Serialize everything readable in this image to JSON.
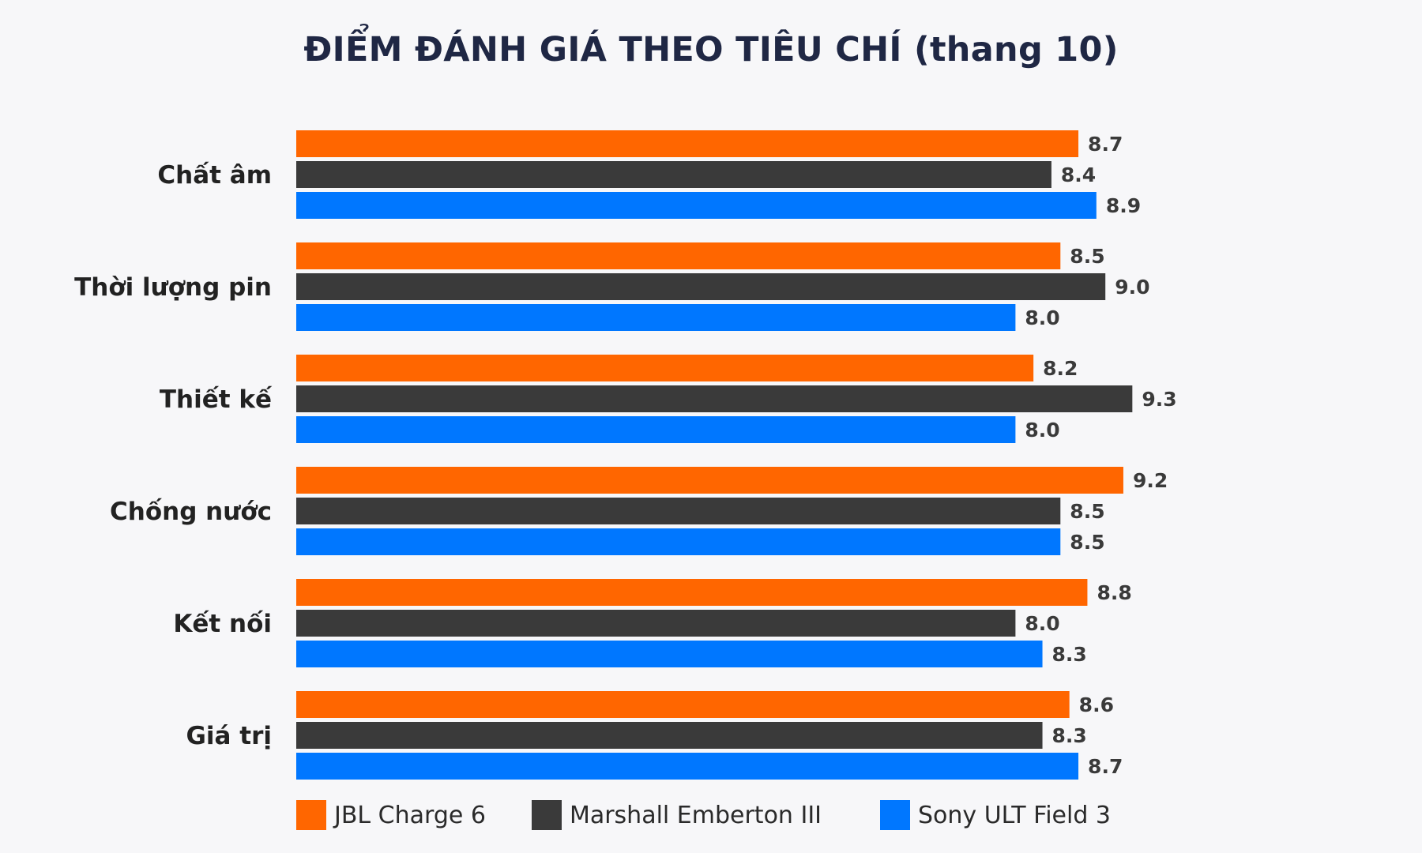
{
  "chart_data": {
    "type": "bar",
    "orientation": "horizontal",
    "title": "ĐIỂM ĐÁNH GIÁ THEO TIÊU CHÍ (thang 10)",
    "categories": [
      "Chất âm",
      "Thời lượng pin",
      "Thiết kế",
      "Chống nước",
      "Kết nối",
      "Giá trị"
    ],
    "series": [
      {
        "name": "JBL Charge 6",
        "color": "#ff6600",
        "values": [
          8.7,
          8.5,
          8.2,
          9.2,
          8.8,
          8.6
        ]
      },
      {
        "name": "Marshall Emberton III",
        "color": "#3a3a3a",
        "values": [
          8.4,
          9.0,
          9.3,
          8.5,
          8.0,
          8.3
        ]
      },
      {
        "name": "Sony ULT Field 3",
        "color": "#0077ff",
        "values": [
          8.9,
          8.0,
          8.0,
          8.5,
          8.3,
          8.7
        ]
      }
    ],
    "xlim": [
      0,
      10
    ],
    "grid": false,
    "legend_position": "bottom",
    "value_labels": true
  }
}
